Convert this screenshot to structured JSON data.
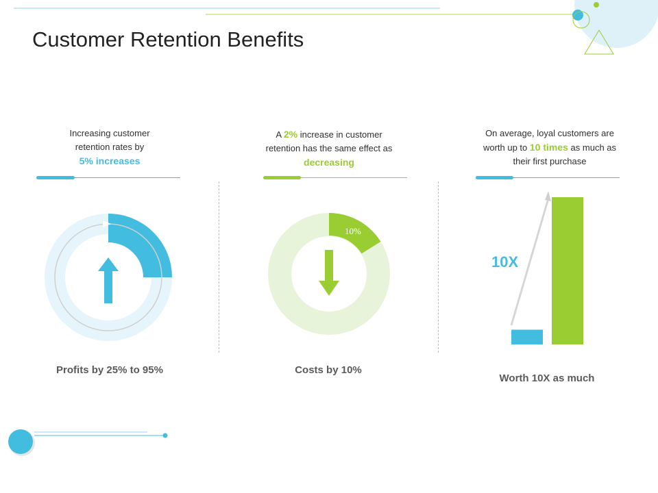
{
  "title": "Customer Retention Benefits",
  "colors": {
    "blue": "#42bde0",
    "green": "#9acd32",
    "light_blue": "#e4f4fa",
    "light_green": "#e8f4da"
  },
  "col1": {
    "caption_line1": "Increasing customer",
    "caption_line2": "retention rates by",
    "highlight": "5% increases",
    "label": "Profits by 25% to 95%",
    "icon": "arrow-up-icon"
  },
  "col2": {
    "caption_pre": "A ",
    "caption_highlight": "2%",
    "caption_post": " increase in customer",
    "caption_line2": "retention has the same effect as",
    "highlight": "decreasing",
    "slice_label": "10%",
    "slice_value": 10,
    "label": "Costs by 10%",
    "icon": "arrow-down-icon"
  },
  "col3": {
    "caption_line1": "On average, loyal customers are",
    "caption_pre": "worth up to ",
    "caption_highlight": "10 times",
    "caption_post": " as much as",
    "caption_line3": "their first purchase",
    "multiplier": "10X",
    "bar_small": 1,
    "bar_large": 10,
    "label": "Worth 10X as much"
  }
}
